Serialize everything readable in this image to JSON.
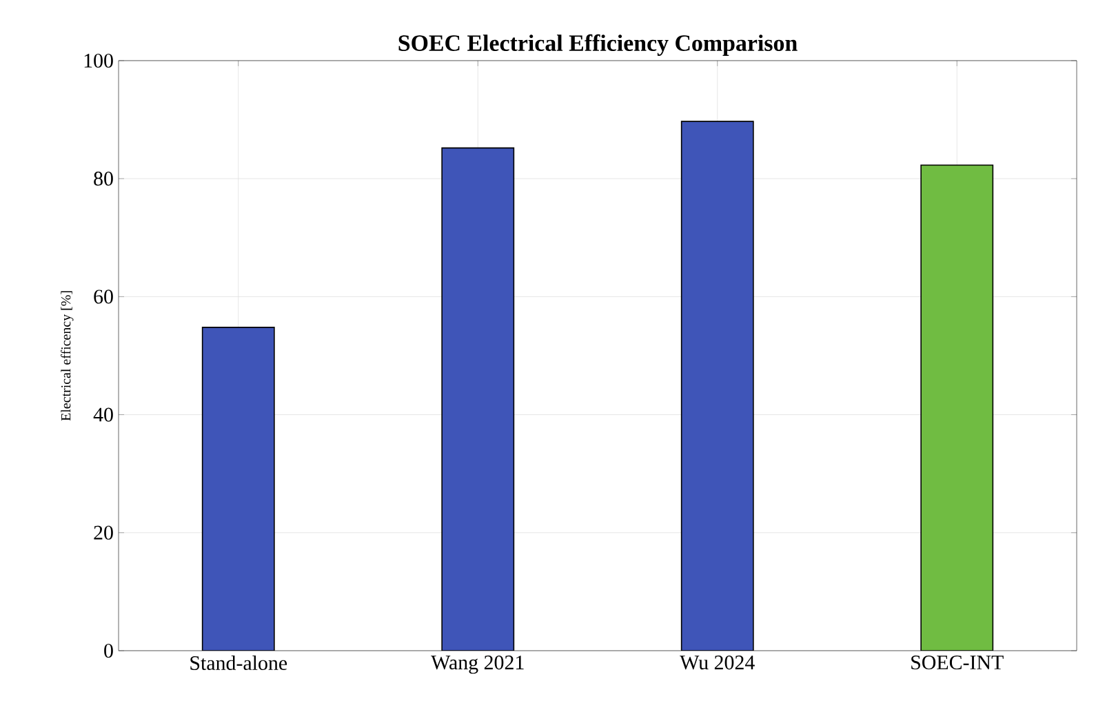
{
  "chart_data": {
    "type": "bar",
    "title": "SOEC Electrical Efficiency Comparison",
    "ylabel": "Electrical efficency [%]",
    "categories": [
      "Stand-alone",
      "Wang 2021",
      "Wu 2024",
      "SOEC-INT"
    ],
    "values": [
      54.8,
      85.2,
      89.7,
      82.3
    ],
    "colors": [
      "#3f55b8",
      "#3f55b8",
      "#3f55b8",
      "#70bc42"
    ],
    "ylim": [
      0,
      100
    ],
    "yticks": [
      0,
      20,
      40,
      60,
      80,
      100
    ],
    "grid": true
  }
}
